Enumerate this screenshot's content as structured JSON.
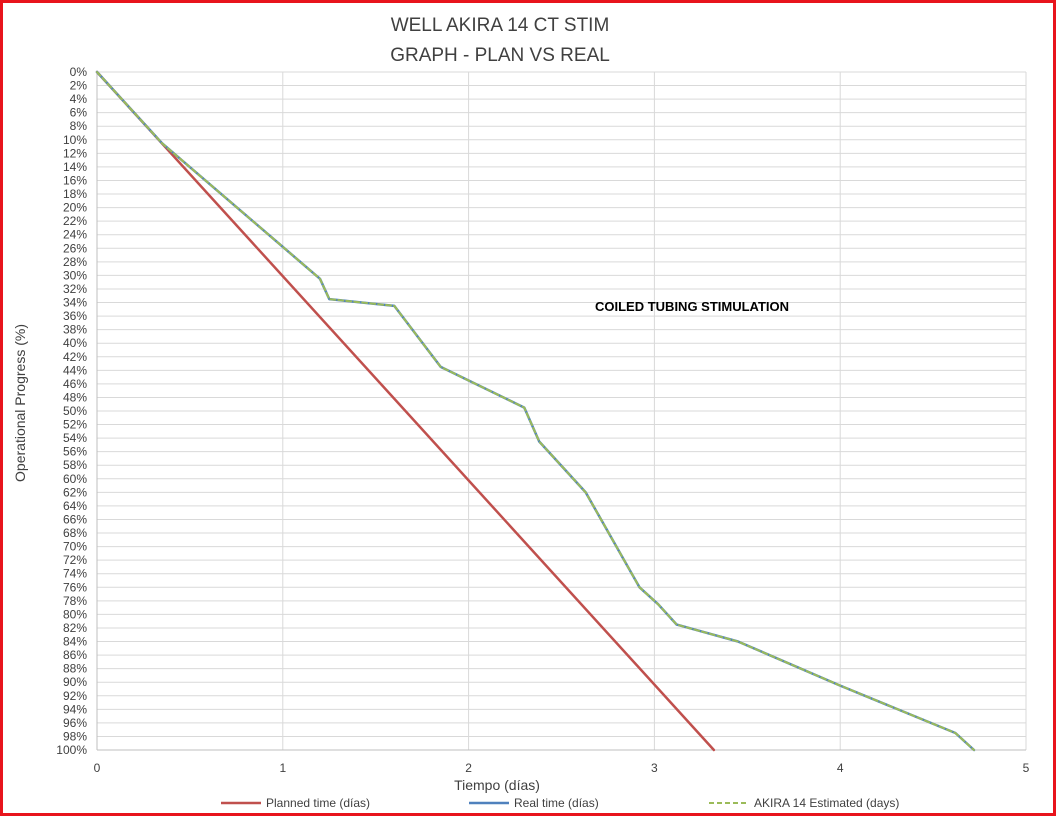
{
  "chart_data": {
    "type": "line",
    "title": [
      "WELL AKIRA 14 CT STIM",
      "GRAPH  - PLAN VS REAL"
    ],
    "xlabel": "Tiempo (días)",
    "ylabel": "Operational Progress (%)",
    "xlim": [
      0,
      5
    ],
    "ylim": [
      0,
      100
    ],
    "y_inverted": true,
    "x_ticks": [
      0,
      1,
      2,
      3,
      4,
      5
    ],
    "y_tick_step": 2,
    "y_tick_suffix": "%",
    "grid": true,
    "legend_position": "bottom",
    "annotation": "COILED TUBING STIMULATION",
    "colors": {
      "frame": "#e8141c",
      "grid": "#d9d9d9",
      "axis": "#bfbfbf",
      "planned": "#c0504d",
      "real": "#4f81bd",
      "estimated": "#9bbb59"
    },
    "series": [
      {
        "name": "Planned time (días)",
        "color": "#c0504d",
        "style": "solid",
        "x": [
          0,
          3.32
        ],
        "y": [
          0,
          100
        ]
      },
      {
        "name": "Real time (días)",
        "color": "#4f81bd",
        "style": "solid",
        "x": [
          0,
          0.35,
          1.2,
          1.25,
          1.6,
          1.85,
          2.3,
          2.38,
          2.63,
          2.92,
          3.02,
          3.12,
          3.45,
          4.0,
          4.62,
          4.72
        ],
        "y": [
          0,
          10.5,
          30.5,
          33.5,
          34.5,
          43.5,
          49.5,
          54.5,
          62.0,
          76.0,
          78.5,
          81.5,
          84.0,
          90.5,
          97.5,
          100
        ]
      },
      {
        "name": "AKIRA 14 Estimated (days)",
        "color": "#9bbb59",
        "style": "dashed",
        "x": [
          0,
          0.35,
          1.2,
          1.25,
          1.6,
          1.85,
          2.3,
          2.38,
          2.63,
          2.92,
          3.02,
          3.12,
          3.45,
          4.0,
          4.62,
          4.72
        ],
        "y": [
          0,
          10.5,
          30.5,
          33.5,
          34.5,
          43.5,
          49.5,
          54.5,
          62.0,
          76.0,
          78.5,
          81.5,
          84.0,
          90.5,
          97.5,
          100
        ]
      }
    ]
  }
}
